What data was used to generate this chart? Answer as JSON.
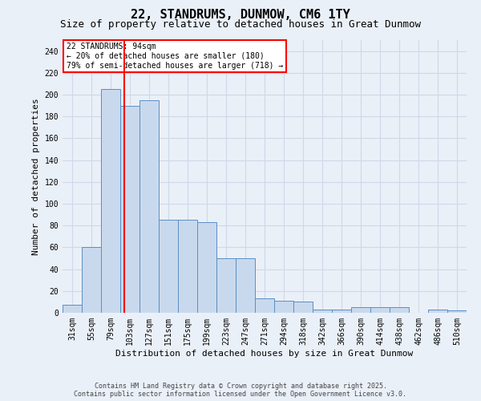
{
  "title": "22, STANDRUMS, DUNMOW, CM6 1TY",
  "subtitle": "Size of property relative to detached houses in Great Dunmow",
  "xlabel": "Distribution of detached houses by size in Great Dunmow",
  "ylabel": "Number of detached properties",
  "categories": [
    "31sqm",
    "55sqm",
    "79sqm",
    "103sqm",
    "127sqm",
    "151sqm",
    "175sqm",
    "199sqm",
    "223sqm",
    "247sqm",
    "271sqm",
    "294sqm",
    "318sqm",
    "342sqm",
    "366sqm",
    "390sqm",
    "414sqm",
    "438sqm",
    "462sqm",
    "486sqm",
    "510sqm"
  ],
  "values": [
    7,
    60,
    205,
    190,
    195,
    85,
    85,
    83,
    50,
    50,
    13,
    11,
    10,
    3,
    3,
    5,
    5,
    5,
    0,
    3,
    2
  ],
  "bar_color": "#c9d9ed",
  "bar_edge_color": "#5b8ec4",
  "annotation_text": "22 STANDRUMS: 94sqm\n← 20% of detached houses are smaller (180)\n79% of semi-detached houses are larger (718) →",
  "vline_x": 2.7,
  "footer_line1": "Contains HM Land Registry data © Crown copyright and database right 2025.",
  "footer_line2": "Contains public sector information licensed under the Open Government Licence v3.0.",
  "bg_color": "#eaf0f8",
  "grid_color": "#d0d8e8",
  "yticks": [
    0,
    20,
    40,
    60,
    80,
    100,
    120,
    140,
    160,
    180,
    200,
    220,
    240
  ],
  "ylim": [
    0,
    250
  ],
  "title_fontsize": 11,
  "subtitle_fontsize": 9,
  "label_fontsize": 8,
  "tick_fontsize": 7,
  "footer_fontsize": 6
}
